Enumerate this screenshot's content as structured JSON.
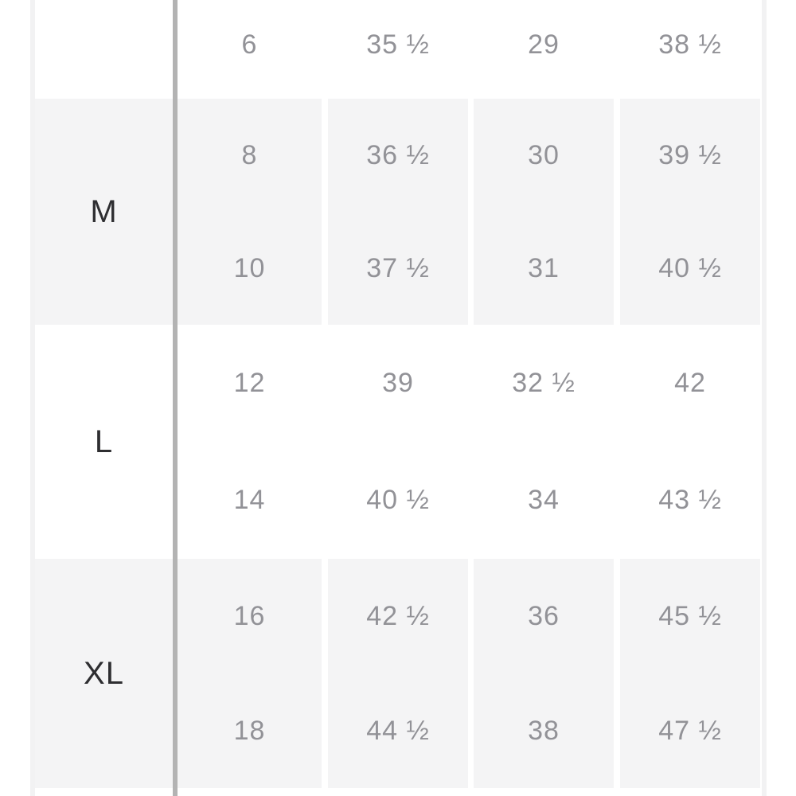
{
  "table": {
    "kind": "size-chart",
    "colors": {
      "stripe": "#f4f4f5",
      "separator": "#b3b3b3",
      "value_text": "#929297",
      "label_text": "#2e2e31",
      "border": "#f2f2f3"
    },
    "sections": [
      {
        "label": "",
        "rows": [
          [
            "6",
            "35 ½",
            "29",
            "38 ½"
          ]
        ]
      },
      {
        "label": "M",
        "rows": [
          [
            "8",
            "36 ½",
            "30",
            "39 ½"
          ],
          [
            "10",
            "37 ½",
            "31",
            "40 ½"
          ]
        ]
      },
      {
        "label": "L",
        "rows": [
          [
            "12",
            "39",
            "32 ½",
            "42"
          ],
          [
            "14",
            "40 ½",
            "34",
            "43 ½"
          ]
        ]
      },
      {
        "label": "XL",
        "rows": [
          [
            "16",
            "42 ½",
            "36",
            "45 ½"
          ],
          [
            "18",
            "44 ½",
            "38",
            "47 ½"
          ]
        ]
      }
    ]
  }
}
